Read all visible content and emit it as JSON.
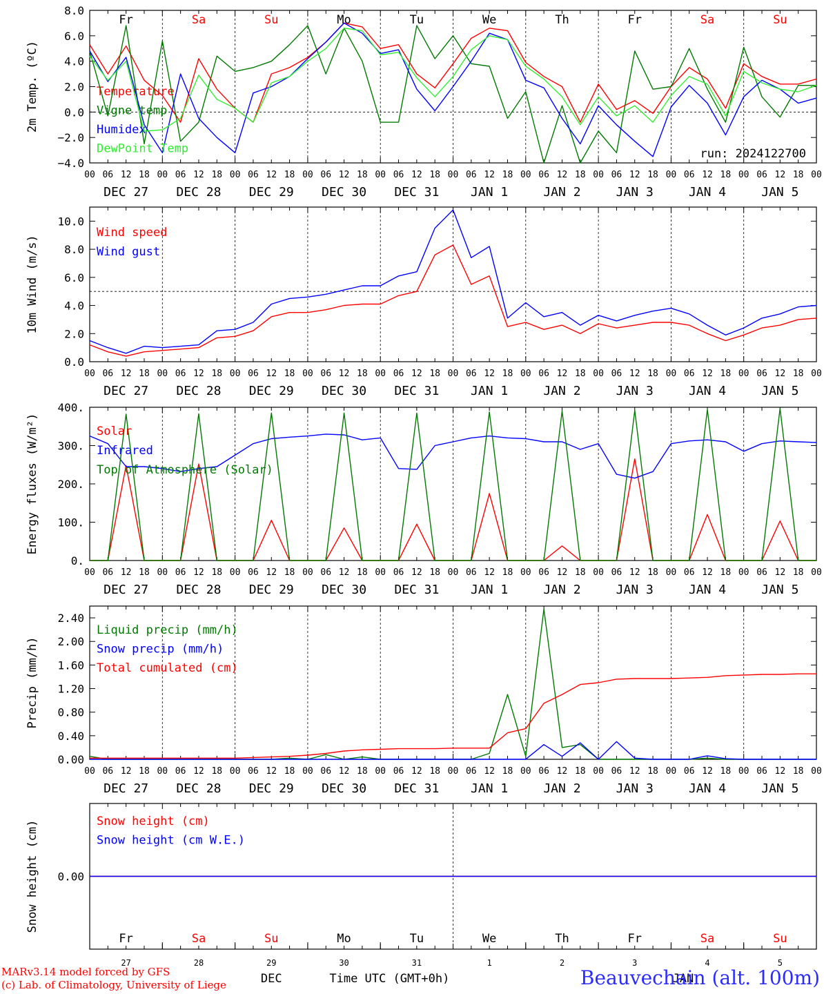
{
  "run_label": "run: 2024122700",
  "station": "Beauvechain (alt. 100m)",
  "credits": {
    "line1": "MARv3.14 model forced by GFS",
    "line2": "(c) Lab. of Climatology, University of Liege"
  },
  "time_axis": {
    "hour_ticks": [
      "00",
      "06",
      "12",
      "18"
    ],
    "dates": [
      "DEC 27",
      "DEC 28",
      "DEC 29",
      "DEC 30",
      "DEC 31",
      "JAN 1",
      "JAN 2",
      "JAN 3",
      "JAN 4",
      "JAN 5"
    ],
    "weekdays": [
      "Fr",
      "Sa",
      "Su",
      "Mo",
      "Tu",
      "We",
      "Th",
      "Fr",
      "Sa",
      "Su"
    ],
    "weekday_colors": [
      "#000000",
      "#ff0000",
      "#ff0000",
      "#000000",
      "#000000",
      "#000000",
      "#000000",
      "#000000",
      "#ff0000",
      "#ff0000"
    ],
    "day_numbers": [
      "27",
      "28",
      "29",
      "30",
      "31",
      "1",
      "2",
      "3",
      "4",
      "5"
    ],
    "month_left": "DEC",
    "month_right": "JAN",
    "footer_label": "Time UTC (GMT+0h)"
  },
  "chart_data": [
    {
      "type": "line",
      "ylabel": "2m Temp. (ºC)",
      "ylim": [
        -4,
        8
      ],
      "yticks": [
        "8.0",
        "6.0",
        "4.0",
        "2.0",
        "0.0",
        "−2.0",
        "−4.0"
      ],
      "ytick_values": [
        8,
        6,
        4,
        2,
        0,
        -2,
        -4
      ],
      "reference_line": 0,
      "x_hours": [
        0,
        6,
        12,
        18,
        24,
        30,
        36,
        42,
        48,
        54,
        60,
        66,
        72,
        78,
        84,
        90,
        96,
        102,
        108,
        114,
        120,
        126,
        132,
        138,
        144,
        150,
        156,
        162,
        168,
        174,
        180,
        186,
        192,
        198,
        204,
        210,
        216,
        222,
        228,
        234,
        240
      ],
      "series": [
        {
          "name": "Temperature",
          "color": "#ff0000",
          "values": [
            5.3,
            3.0,
            5.2,
            2.5,
            1.3,
            -0.8,
            4.2,
            1.8,
            0.3,
            -0.8,
            3.0,
            3.5,
            4.3,
            5.5,
            7.0,
            6.7,
            5.0,
            5.3,
            3.0,
            1.9,
            3.8,
            5.8,
            6.6,
            6.4,
            3.9,
            2.8,
            2.0,
            -0.8,
            2.2,
            0.2,
            0.9,
            -0.1,
            2.0,
            3.5,
            2.6,
            0.3,
            3.8,
            2.8,
            2.2,
            2.2,
            2.6
          ]
        },
        {
          "name": "Vigne temp",
          "color": "#007a00",
          "values": [
            4.8,
            -0.3,
            6.8,
            -2.5,
            5.6,
            -2.3,
            -0.8,
            4.4,
            3.2,
            3.5,
            4.0,
            5.3,
            6.8,
            3.0,
            6.6,
            4.0,
            -0.8,
            -0.8,
            6.8,
            4.2,
            6.0,
            3.8,
            3.6,
            -0.5,
            1.6,
            -4.0,
            0.5,
            -4.0,
            -1.5,
            -3.2,
            4.8,
            1.8,
            2.0,
            5.0,
            1.8,
            -0.8,
            5.1,
            1.2,
            -0.4,
            2.1,
            2.1
          ]
        },
        {
          "name": "Humidex",
          "color": "#0000ff",
          "values": [
            4.8,
            2.4,
            4.3,
            -1.0,
            -3.2,
            3.0,
            -0.5,
            -2.0,
            -3.2,
            1.5,
            2.0,
            2.8,
            4.2,
            5.5,
            7.0,
            6.2,
            4.6,
            4.9,
            1.8,
            0.1,
            2.0,
            4.0,
            6.2,
            5.7,
            2.5,
            1.9,
            -0.5,
            -2.5,
            0.5,
            -1.0,
            -2.3,
            -3.5,
            0.4,
            2.1,
            0.7,
            -1.8,
            1.2,
            2.5,
            1.8,
            0.7,
            1.1
          ]
        },
        {
          "name": "DewPoint Temp",
          "color": "#33ee33",
          "values": [
            4.4,
            2.5,
            4.0,
            -1.5,
            -1.4,
            -0.5,
            2.9,
            1.0,
            0.3,
            -0.8,
            2.3,
            2.8,
            4.0,
            5.0,
            6.6,
            6.4,
            4.5,
            4.7,
            2.7,
            1.2,
            2.8,
            4.9,
            6.0,
            5.7,
            3.6,
            2.6,
            1.2,
            -1.0,
            1.2,
            -0.3,
            0.5,
            -0.8,
            1.3,
            2.8,
            2.2,
            -0.3,
            3.2,
            2.3,
            1.8,
            1.6,
            2.1
          ]
        }
      ]
    },
    {
      "type": "line",
      "ylabel": "10m Wind (m/s)",
      "ylim": [
        0,
        11
      ],
      "yticks": [
        "10.0",
        "8.0",
        "6.0",
        "4.0",
        "2.0",
        "0.0"
      ],
      "ytick_values": [
        10,
        8,
        6,
        4,
        2,
        0
      ],
      "reference_line": 5,
      "x_hours": [
        0,
        6,
        12,
        18,
        24,
        30,
        36,
        42,
        48,
        54,
        60,
        66,
        72,
        78,
        84,
        90,
        96,
        102,
        108,
        114,
        120,
        126,
        132,
        138,
        144,
        150,
        156,
        162,
        168,
        174,
        180,
        186,
        192,
        198,
        204,
        210,
        216,
        222,
        228,
        234,
        240
      ],
      "series": [
        {
          "name": "Wind speed",
          "color": "#ff0000",
          "values": [
            1.2,
            0.7,
            0.4,
            0.7,
            0.8,
            0.9,
            1.0,
            1.7,
            1.8,
            2.2,
            3.2,
            3.5,
            3.5,
            3.7,
            4.0,
            4.1,
            4.1,
            4.7,
            5.0,
            7.6,
            8.3,
            5.5,
            6.1,
            2.5,
            2.8,
            2.3,
            2.6,
            2.0,
            2.7,
            2.4,
            2.6,
            2.8,
            2.8,
            2.6,
            2.0,
            1.5,
            1.9,
            2.4,
            2.6,
            3.0,
            3.1
          ]
        },
        {
          "name": "Wind gust",
          "color": "#0000ff",
          "values": [
            1.5,
            1.0,
            0.6,
            1.1,
            1.0,
            1.1,
            1.2,
            2.2,
            2.3,
            2.8,
            4.1,
            4.5,
            4.6,
            4.8,
            5.1,
            5.4,
            5.4,
            6.1,
            6.4,
            9.5,
            10.8,
            7.4,
            8.2,
            3.1,
            4.2,
            3.2,
            3.5,
            2.6,
            3.3,
            2.9,
            3.3,
            3.6,
            3.8,
            3.4,
            2.6,
            1.9,
            2.4,
            3.1,
            3.4,
            3.9,
            4.0
          ]
        }
      ]
    },
    {
      "type": "line",
      "ylabel": "Energy fluxes (W/m²)",
      "ylim": [
        0,
        400
      ],
      "yticks": [
        "400.",
        "300.",
        "200.",
        "100.",
        "0."
      ],
      "ytick_values": [
        400,
        300,
        200,
        100,
        0
      ],
      "reference_line": null,
      "x_hours": [
        0,
        6,
        12,
        18,
        24,
        30,
        36,
        42,
        48,
        54,
        60,
        66,
        72,
        78,
        84,
        90,
        96,
        102,
        108,
        114,
        120,
        126,
        132,
        138,
        144,
        150,
        156,
        162,
        168,
        174,
        180,
        186,
        192,
        198,
        204,
        210,
        216,
        222,
        228,
        234,
        240
      ],
      "series": [
        {
          "name": "Solar",
          "color": "#ff0000",
          "values": [
            0,
            0,
            248,
            0,
            0,
            0,
            252,
            0,
            0,
            0,
            105,
            0,
            0,
            0,
            85,
            0,
            0,
            0,
            95,
            0,
            0,
            0,
            175,
            0,
            0,
            0,
            38,
            0,
            0,
            0,
            265,
            0,
            0,
            0,
            120,
            0,
            0,
            0,
            103,
            0,
            0
          ]
        },
        {
          "name": "Infrared",
          "color": "#0000ff",
          "values": [
            325,
            305,
            245,
            245,
            240,
            232,
            240,
            245,
            275,
            305,
            318,
            322,
            325,
            330,
            328,
            315,
            320,
            240,
            238,
            300,
            310,
            320,
            325,
            320,
            318,
            310,
            310,
            290,
            305,
            225,
            215,
            232,
            305,
            312,
            315,
            310,
            285,
            305,
            312,
            310,
            308
          ]
        },
        {
          "name": "Top of Atmosphere (Solar)",
          "color": "#007a00",
          "values": [
            0,
            0,
            382,
            0,
            0,
            0,
            383,
            0,
            0,
            0,
            385,
            0,
            0,
            0,
            385,
            0,
            0,
            0,
            385,
            0,
            0,
            0,
            388,
            0,
            0,
            0,
            390,
            0,
            0,
            0,
            392,
            0,
            0,
            0,
            394,
            0,
            0,
            0,
            397,
            0,
            0
          ]
        }
      ]
    },
    {
      "type": "line",
      "ylabel": "Precip (mm/h)",
      "ylim": [
        0,
        2.6
      ],
      "yticks": [
        "2.40",
        "2.00",
        "1.60",
        "1.20",
        "0.80",
        "0.40",
        "0.00"
      ],
      "ytick_values": [
        2.4,
        2.0,
        1.6,
        1.2,
        0.8,
        0.4,
        0.0
      ],
      "reference_line": null,
      "x_hours": [
        0,
        6,
        12,
        18,
        24,
        30,
        36,
        42,
        48,
        54,
        60,
        66,
        72,
        78,
        84,
        90,
        96,
        102,
        108,
        114,
        120,
        126,
        132,
        138,
        144,
        150,
        156,
        162,
        168,
        174,
        180,
        186,
        192,
        198,
        204,
        210,
        216,
        222,
        228,
        234,
        240
      ],
      "series": [
        {
          "name": "Liquid precip (mm/h)",
          "color": "#007a00",
          "values": [
            0.05,
            0.0,
            0.0,
            0.0,
            0.0,
            0.0,
            0.0,
            0.0,
            0.0,
            0.0,
            0.0,
            0.02,
            0.0,
            0.08,
            0.0,
            0.04,
            0.0,
            0.0,
            0.0,
            0.0,
            0.0,
            0.0,
            0.1,
            1.1,
            0.05,
            2.55,
            0.2,
            0.25,
            0.0,
            0.0,
            0.0,
            0.0,
            0.0,
            0.0,
            0.02,
            0.0,
            0.0,
            0.0,
            0.0,
            0.0,
            0.0
          ]
        },
        {
          "name": "Snow precip (mm/h)",
          "color": "#0000ff",
          "values": [
            0.0,
            0.0,
            0.0,
            0.0,
            0.0,
            0.0,
            0.0,
            0.0,
            0.0,
            0.0,
            0.0,
            0.0,
            0.0,
            0.0,
            0.0,
            0.0,
            0.0,
            0.0,
            0.0,
            0.0,
            0.0,
            0.0,
            0.0,
            0.0,
            0.0,
            0.25,
            0.05,
            0.28,
            0.0,
            0.3,
            0.02,
            0.0,
            0.0,
            0.0,
            0.06,
            0.01,
            0.0,
            0.0,
            0.0,
            0.0,
            0.0
          ]
        },
        {
          "name": "Total cumulated (cm)",
          "color": "#ff0000",
          "values": [
            0.02,
            0.02,
            0.02,
            0.02,
            0.02,
            0.02,
            0.02,
            0.02,
            0.02,
            0.03,
            0.04,
            0.05,
            0.07,
            0.1,
            0.14,
            0.16,
            0.17,
            0.18,
            0.18,
            0.18,
            0.19,
            0.19,
            0.19,
            0.45,
            0.52,
            0.95,
            1.1,
            1.27,
            1.3,
            1.36,
            1.37,
            1.37,
            1.37,
            1.38,
            1.39,
            1.42,
            1.43,
            1.44,
            1.44,
            1.45,
            1.45
          ]
        }
      ]
    },
    {
      "type": "line",
      "ylabel": "Snow height (cm)",
      "ylim": [
        -1,
        1
      ],
      "yticks": [
        "0.00"
      ],
      "ytick_values": [
        0
      ],
      "reference_line": null,
      "x_hours": [
        0,
        240
      ],
      "series": [
        {
          "name": "Snow height (cm)",
          "color": "#ff0000",
          "values": [
            0,
            0
          ]
        },
        {
          "name": "Snow height (cm W.E.)",
          "color": "#0000ff",
          "values": [
            0,
            0
          ]
        }
      ]
    }
  ]
}
